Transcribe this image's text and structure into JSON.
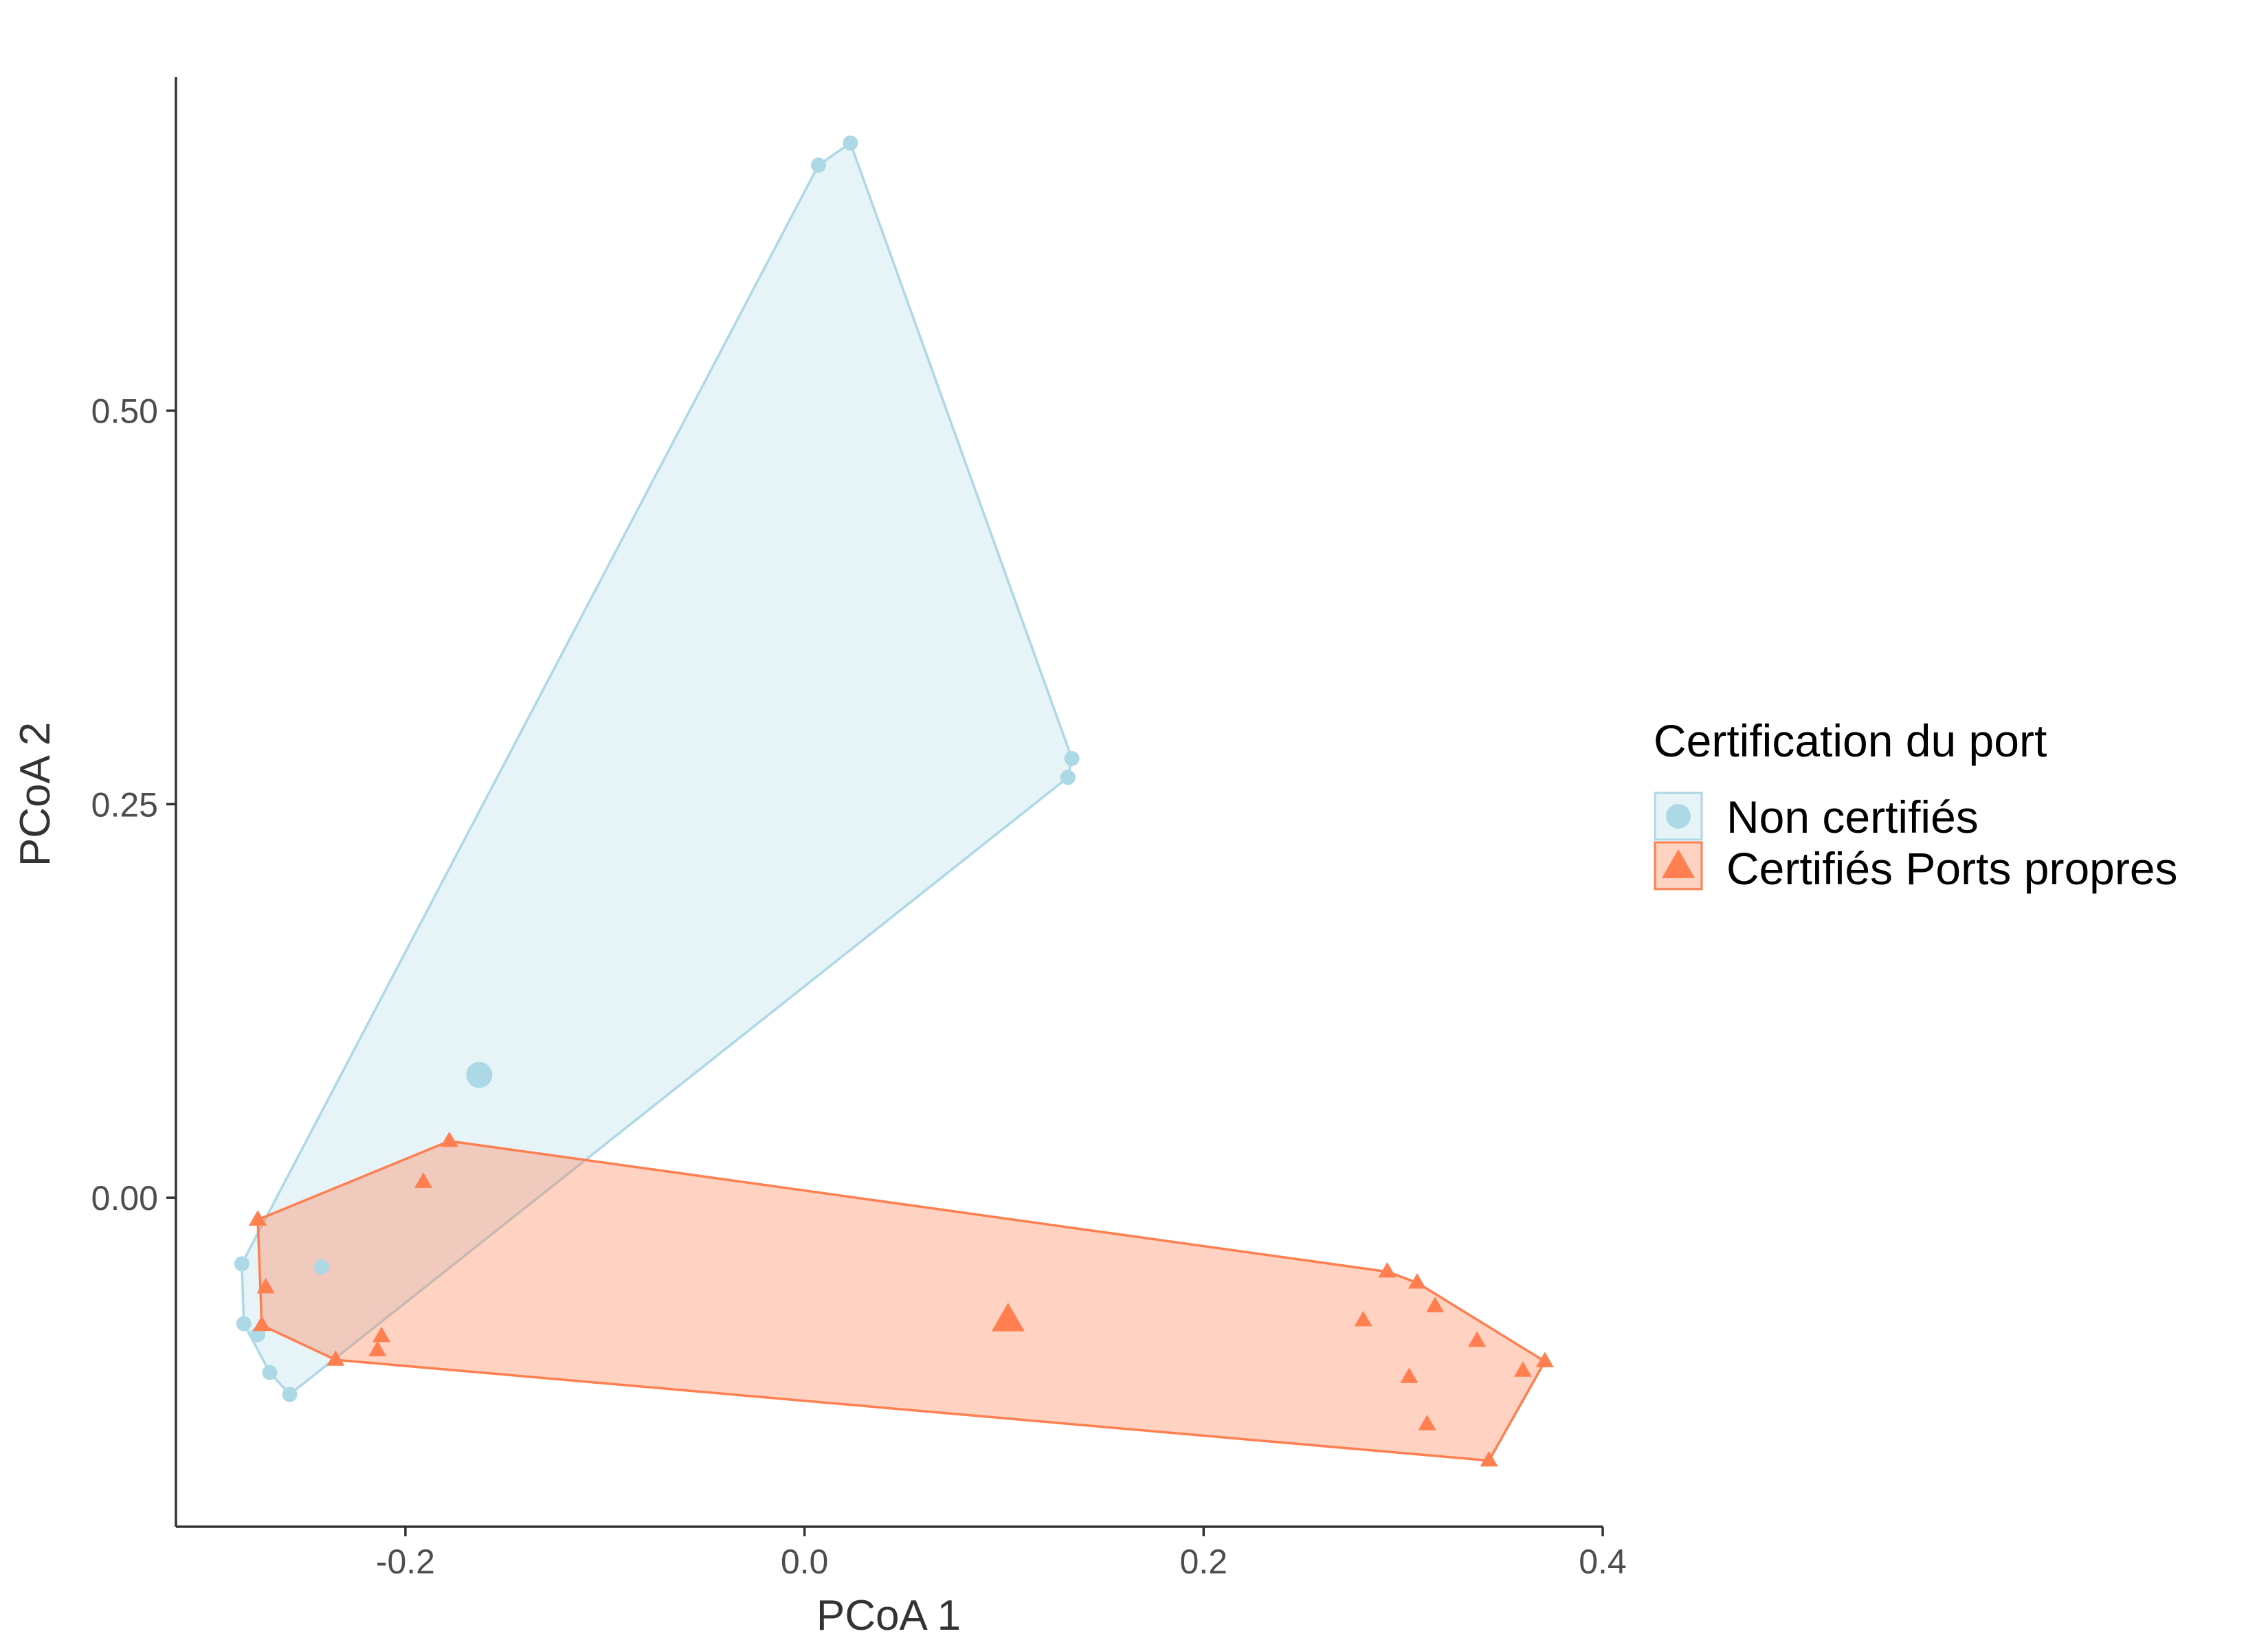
{
  "colors": {
    "non_certifies": "#ADD8E6",
    "certifies": "#FF7F50",
    "axis": "#333333"
  },
  "chart_data": {
    "type": "scatter",
    "xlabel": "PCoA 1",
    "ylabel": "PCoA 2",
    "xlim": [
      -0.315,
      0.4
    ],
    "ylim": [
      -0.209,
      0.712
    ],
    "x_ticks": [
      -0.2,
      0.0,
      0.2,
      0.4
    ],
    "x_tick_labels": [
      "-0.2",
      "0.0",
      "0.2",
      "0.4"
    ],
    "y_ticks": [
      0.0,
      0.25,
      0.5
    ],
    "y_tick_labels": [
      "0.00",
      "0.25",
      "0.50"
    ],
    "grid": false,
    "legend": {
      "title": "Certification du port",
      "position": "right",
      "entries": [
        "Non certifiés",
        "Certifiés Ports propres"
      ]
    },
    "series": [
      {
        "name": "Non certifiés",
        "shape": "circle",
        "color": "#ADD8E6",
        "points": [
          [
            0.007,
            0.656
          ],
          [
            0.023,
            0.67
          ],
          [
            0.134,
            0.279
          ],
          [
            0.132,
            0.267
          ],
          [
            -0.282,
            -0.042
          ],
          [
            -0.281,
            -0.08
          ],
          [
            -0.274,
            -0.087
          ],
          [
            -0.268,
            -0.111
          ],
          [
            -0.258,
            -0.125
          ],
          [
            -0.242,
            -0.044
          ]
        ],
        "hull": [
          [
            0.023,
            0.67
          ],
          [
            0.134,
            0.279
          ],
          [
            0.132,
            0.267
          ],
          [
            -0.258,
            -0.125
          ],
          [
            -0.268,
            -0.111
          ],
          [
            -0.281,
            -0.08
          ],
          [
            -0.282,
            -0.042
          ],
          [
            0.007,
            0.656
          ]
        ],
        "centroid": [
          -0.163,
          0.078
        ]
      },
      {
        "name": "Certifiés Ports propres",
        "shape": "triangle",
        "color": "#FF7F50",
        "points": [
          [
            -0.274,
            -0.014
          ],
          [
            -0.178,
            0.036
          ],
          [
            -0.191,
            0.01
          ],
          [
            -0.27,
            -0.057
          ],
          [
            -0.272,
            -0.081
          ],
          [
            -0.212,
            -0.088
          ],
          [
            -0.214,
            -0.097
          ],
          [
            -0.235,
            -0.103
          ],
          [
            0.292,
            -0.047
          ],
          [
            0.307,
            -0.054
          ],
          [
            0.316,
            -0.069
          ],
          [
            0.28,
            -0.078
          ],
          [
            0.337,
            -0.091
          ],
          [
            0.303,
            -0.114
          ],
          [
            0.36,
            -0.11
          ],
          [
            0.371,
            -0.104
          ],
          [
            0.312,
            -0.144
          ],
          [
            0.343,
            -0.167
          ]
        ],
        "hull": [
          [
            -0.274,
            -0.014
          ],
          [
            -0.178,
            0.036
          ],
          [
            0.292,
            -0.047
          ],
          [
            0.307,
            -0.054
          ],
          [
            0.371,
            -0.104
          ],
          [
            0.343,
            -0.167
          ],
          [
            -0.235,
            -0.103
          ],
          [
            -0.272,
            -0.081
          ]
        ],
        "centroid": [
          0.102,
          -0.078
        ]
      }
    ]
  }
}
